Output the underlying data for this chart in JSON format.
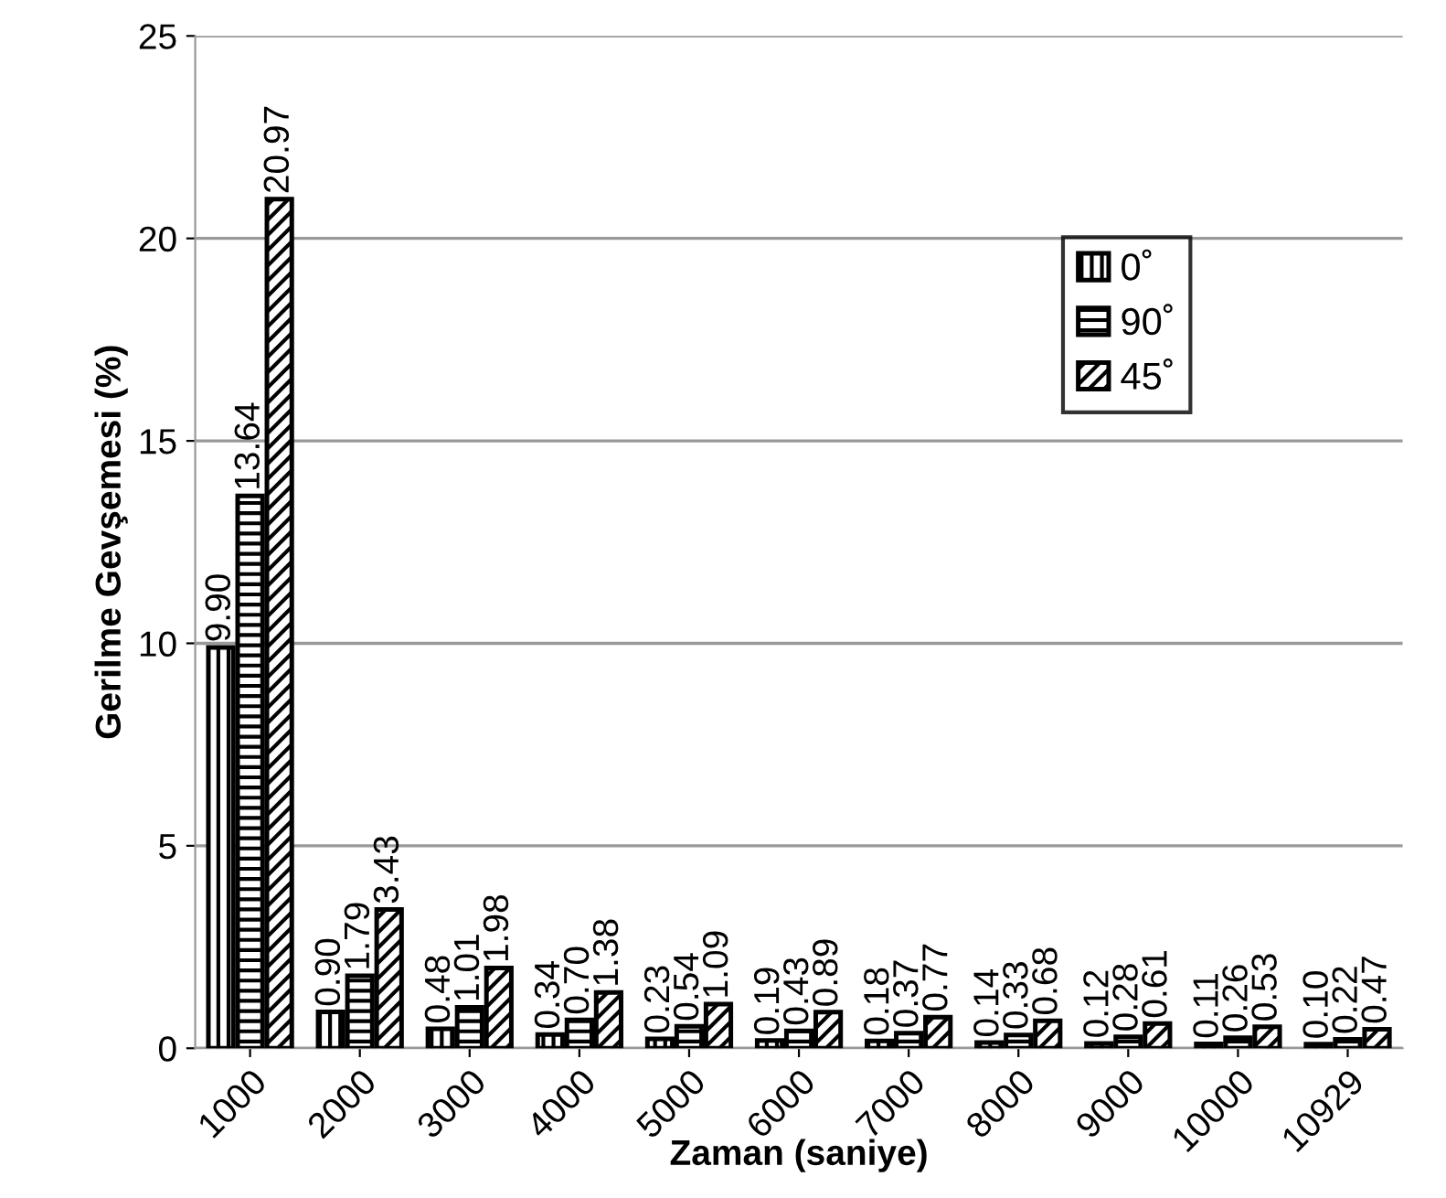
{
  "chart_data": {
    "type": "bar",
    "xlabel": "Zaman (saniye)",
    "ylabel": "Gerilme Gevşemesi (%)",
    "categories": [
      "1000",
      "2000",
      "3000",
      "4000",
      "5000",
      "6000",
      "7000",
      "8000",
      "9000",
      "10000",
      "10929"
    ],
    "series": [
      {
        "name": "0˚",
        "color": "#000000",
        "values": [
          9.9,
          0.9,
          0.48,
          0.34,
          0.23,
          0.19,
          0.18,
          0.14,
          0.12,
          0.11,
          0.1
        ],
        "value_labels": [
          "9.90",
          "0.90",
          "0.48",
          "0.34",
          "0.23",
          "0.19",
          "0.18",
          "0.14",
          "0.12",
          "0.11",
          "0.10"
        ]
      },
      {
        "name": "90˚",
        "color": "#000000",
        "values": [
          13.64,
          1.79,
          1.01,
          0.7,
          0.54,
          0.43,
          0.37,
          0.33,
          0.28,
          0.26,
          0.22
        ],
        "value_labels": [
          "13.64",
          "1.79",
          "1.01",
          "0.70",
          "0.54",
          "0.43",
          "0.37",
          "0.33",
          "0.28",
          "0.26",
          "0.22"
        ]
      },
      {
        "name": "45˚",
        "color": "#000000",
        "values": [
          20.97,
          3.43,
          1.98,
          1.38,
          1.09,
          0.89,
          0.77,
          0.68,
          0.61,
          0.53,
          0.47
        ],
        "value_labels": [
          "20.97",
          "3.43",
          "1.98",
          "1.38",
          "1.09",
          "0.89",
          "0.77",
          "0.68",
          "0.61",
          "0.53",
          "0.47"
        ]
      }
    ],
    "ylim": [
      0,
      25
    ],
    "yticks": [
      0,
      5,
      10,
      15,
      20,
      25
    ],
    "grid": "y",
    "legend": "top right"
  }
}
